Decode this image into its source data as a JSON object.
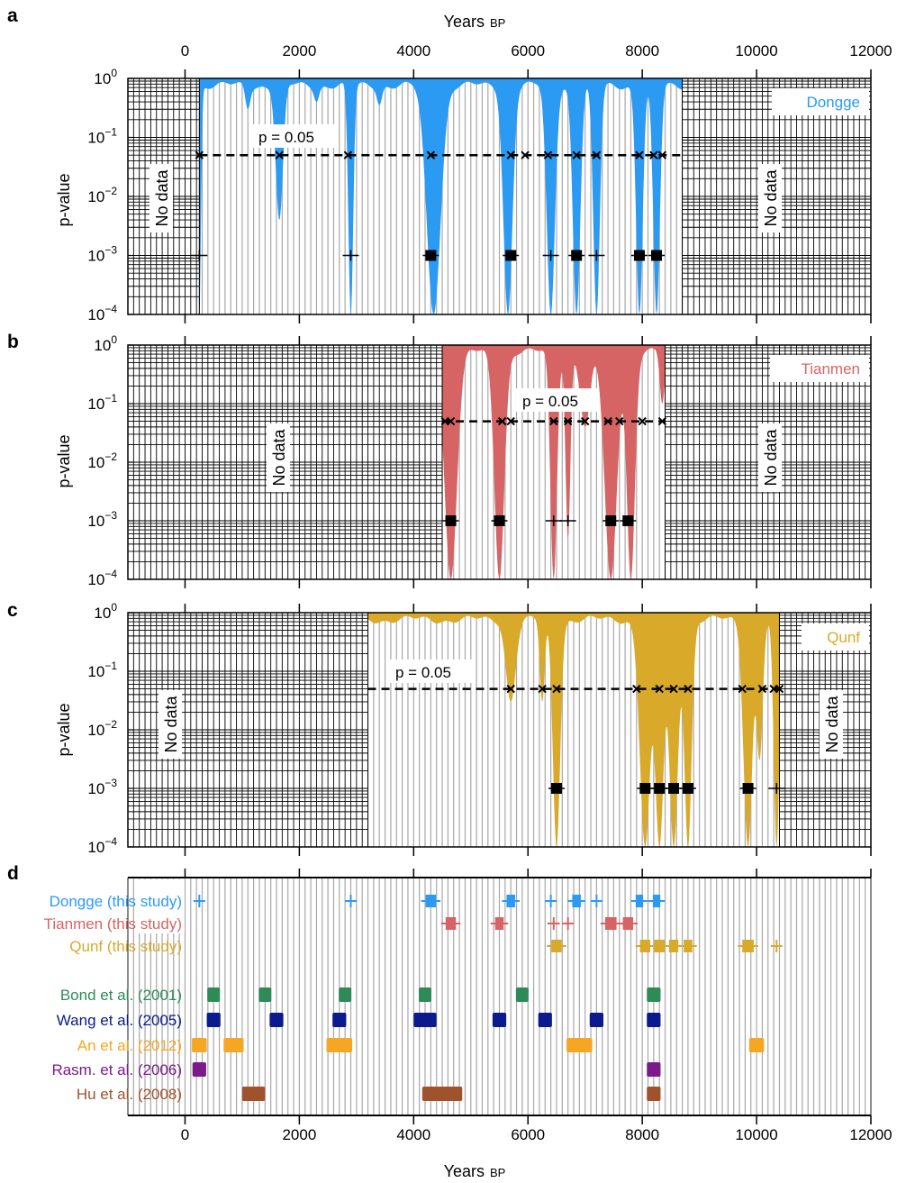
{
  "x_axis": {
    "label_main": "Years",
    "label_small": "BP",
    "ticks": [
      "0",
      "2000",
      "4000",
      "6000",
      "8000",
      "10000",
      "12000"
    ],
    "range": [
      -1000,
      12000
    ]
  },
  "no_data_label": "No data",
  "chart_data": [
    {
      "type": "area",
      "panel": "a",
      "title": "Dongge",
      "color": "#2b9af3",
      "ylabel": "p-value",
      "yscale": "log",
      "ylim": [
        0.0001,
        1
      ],
      "ytick_labels": [
        "10^0",
        "10^-1",
        "10^-2",
        "10^-3",
        "10^-4"
      ],
      "threshold_label": "p = 0.05",
      "threshold": 0.05,
      "data_range": [
        250,
        8700
      ],
      "dips": [
        {
          "x": 250,
          "min": 0.0001,
          "w": 40
        },
        {
          "x": 1100,
          "min": 0.3,
          "w": 60
        },
        {
          "x": 1650,
          "min": 0.004,
          "w": 90
        },
        {
          "x": 2300,
          "min": 0.4,
          "w": 60
        },
        {
          "x": 2900,
          "min": 0.0001,
          "w": 60
        },
        {
          "x": 3400,
          "min": 0.35,
          "w": 60
        },
        {
          "x": 4350,
          "min": 0.0001,
          "w": 170
        },
        {
          "x": 5650,
          "min": 0.0001,
          "w": 110
        },
        {
          "x": 6400,
          "min": 0.0001,
          "w": 100
        },
        {
          "x": 6850,
          "min": 0.0001,
          "w": 90
        },
        {
          "x": 7200,
          "min": 0.0001,
          "w": 80
        },
        {
          "x": 7950,
          "min": 0.0001,
          "w": 80
        },
        {
          "x": 8250,
          "min": 0.0001,
          "w": 80
        }
      ],
      "crossings_p005": [
        250,
        1650,
        2850,
        4300,
        5700,
        5950,
        6350,
        6850,
        7200,
        7950,
        8200,
        8350
      ],
      "events_p001": [
        {
          "x": 250,
          "bar": false
        },
        {
          "x": 2900,
          "bar": false
        },
        {
          "x": 4300,
          "bar": true
        },
        {
          "x": 5700,
          "bar": true
        },
        {
          "x": 6400,
          "bar": false
        },
        {
          "x": 6850,
          "bar": true
        },
        {
          "x": 7200,
          "bar": false
        },
        {
          "x": 7950,
          "bar": true
        },
        {
          "x": 8250,
          "bar": true
        }
      ]
    },
    {
      "type": "area",
      "panel": "b",
      "title": "Tianmen",
      "color": "#d66464",
      "ylabel": "p-value",
      "yscale": "log",
      "ylim": [
        0.0001,
        1
      ],
      "ytick_labels": [
        "10^0",
        "10^-1",
        "10^-2",
        "10^-3",
        "10^-4"
      ],
      "threshold_label": "p = 0.05",
      "threshold": 0.05,
      "data_range": [
        4500,
        8400
      ],
      "dips": [
        {
          "x": 4650,
          "min": 0.0001,
          "w": 150
        },
        {
          "x": 5500,
          "min": 0.0001,
          "w": 120
        },
        {
          "x": 6450,
          "min": 0.0001,
          "w": 80
        },
        {
          "x": 6700,
          "min": 0.0005,
          "w": 60
        },
        {
          "x": 7000,
          "min": 0.04,
          "w": 120
        },
        {
          "x": 7450,
          "min": 0.0001,
          "w": 150
        },
        {
          "x": 7800,
          "min": 0.0001,
          "w": 100
        },
        {
          "x": 8350,
          "min": 0.1,
          "w": 60
        }
      ],
      "crossings_p005": [
        4550,
        4650,
        5550,
        5700,
        6450,
        6700,
        7000,
        7400,
        7600,
        8000,
        8350
      ],
      "events_p001": [
        {
          "x": 4650,
          "bar": true
        },
        {
          "x": 5500,
          "bar": true
        },
        {
          "x": 6450,
          "bar": false
        },
        {
          "x": 6700,
          "bar": false
        },
        {
          "x": 7450,
          "bar": true
        },
        {
          "x": 7750,
          "bar": true
        }
      ]
    },
    {
      "type": "area",
      "panel": "c",
      "title": "Qunf",
      "color": "#d9a92a",
      "ylabel": "p-value",
      "yscale": "log",
      "ylim": [
        0.0001,
        1
      ],
      "ytick_labels": [
        "10^0",
        "10^-1",
        "10^-2",
        "10^-3",
        "10^-4"
      ],
      "threshold_label": "p = 0.05",
      "threshold": 0.05,
      "data_range": [
        3200,
        10400
      ],
      "dips": [
        {
          "x": 5700,
          "min": 0.03,
          "w": 120
        },
        {
          "x": 6250,
          "min": 0.03,
          "w": 60
        },
        {
          "x": 6500,
          "min": 0.0001,
          "w": 90
        },
        {
          "x": 8050,
          "min": 0.0001,
          "w": 130
        },
        {
          "x": 8300,
          "min": 0.0001,
          "w": 110
        },
        {
          "x": 8550,
          "min": 0.0001,
          "w": 110
        },
        {
          "x": 8800,
          "min": 0.0001,
          "w": 90
        },
        {
          "x": 9850,
          "min": 0.0001,
          "w": 110
        },
        {
          "x": 10050,
          "min": 0.003,
          "w": 80
        },
        {
          "x": 10350,
          "min": 0.0001,
          "w": 70
        }
      ],
      "crossings_p005": [
        5700,
        6250,
        6500,
        7900,
        8300,
        8550,
        8800,
        9750,
        10100,
        10300,
        10400
      ],
      "events_p001": [
        {
          "x": 6500,
          "bar": true
        },
        {
          "x": 8050,
          "bar": true
        },
        {
          "x": 8300,
          "bar": true
        },
        {
          "x": 8550,
          "bar": true
        },
        {
          "x": 8800,
          "bar": true
        },
        {
          "x": 9850,
          "bar": true
        },
        {
          "x": 10350,
          "bar": false
        }
      ]
    },
    {
      "type": "timeline",
      "panel": "d",
      "rows": [
        {
          "label": "Dongge (this study)",
          "color": "#2b9af3",
          "events": [
            {
              "x": 250,
              "w": 40
            },
            {
              "x": 2900,
              "w": 40
            },
            {
              "x": 4300,
              "w": 180
            },
            {
              "x": 5700,
              "w": 150
            },
            {
              "x": 6400,
              "w": 40
            },
            {
              "x": 6850,
              "w": 150
            },
            {
              "x": 7200,
              "w": 40
            },
            {
              "x": 7950,
              "w": 130
            },
            {
              "x": 8250,
              "w": 130
            }
          ]
        },
        {
          "label": "Tianmen (this study)",
          "color": "#d66464",
          "events": [
            {
              "x": 4650,
              "w": 180
            },
            {
              "x": 5500,
              "w": 150
            },
            {
              "x": 6450,
              "w": 60
            },
            {
              "x": 6700,
              "w": 40
            },
            {
              "x": 7450,
              "w": 200
            },
            {
              "x": 7750,
              "w": 180
            }
          ]
        },
        {
          "label": "Qunf (this study)",
          "color": "#d9a92a",
          "events": [
            {
              "x": 6500,
              "w": 180
            },
            {
              "x": 8050,
              "w": 180
            },
            {
              "x": 8300,
              "w": 180
            },
            {
              "x": 8550,
              "w": 160
            },
            {
              "x": 8800,
              "w": 150
            },
            {
              "x": 9850,
              "w": 200
            },
            {
              "x": 10350,
              "w": 40
            }
          ]
        },
        {
          "label": "Bond et al. (2001)",
          "color": "#2e8b57",
          "events": [
            {
              "x": 500,
              "w": 220
            },
            {
              "x": 1400,
              "w": 220
            },
            {
              "x": 2800,
              "w": 220
            },
            {
              "x": 4200,
              "w": 220
            },
            {
              "x": 5900,
              "w": 220
            },
            {
              "x": 8200,
              "w": 240
            }
          ]
        },
        {
          "label": "Wang et al. (2005)",
          "color": "#0b1a8c",
          "events": [
            {
              "x": 500,
              "w": 240
            },
            {
              "x": 1600,
              "w": 240
            },
            {
              "x": 2700,
              "w": 240
            },
            {
              "x": 4200,
              "w": 400
            },
            {
              "x": 5500,
              "w": 240
            },
            {
              "x": 6300,
              "w": 240
            },
            {
              "x": 7200,
              "w": 240
            },
            {
              "x": 8200,
              "w": 240
            }
          ]
        },
        {
          "label": "An et al. (2012)",
          "color": "#f5a623",
          "events": [
            {
              "x": 250,
              "w": 260
            },
            {
              "x": 850,
              "w": 350
            },
            {
              "x": 2700,
              "w": 450
            },
            {
              "x": 6900,
              "w": 450
            },
            {
              "x": 10000,
              "w": 260
            }
          ]
        },
        {
          "label": "Rasm. et al. (2006)",
          "color": "#7b1a8a",
          "events": [
            {
              "x": 250,
              "w": 240
            },
            {
              "x": 8200,
              "w": 240
            }
          ]
        },
        {
          "label": "Hu et al. (2008)",
          "color": "#a0522d",
          "events": [
            {
              "x": 1200,
              "w": 400
            },
            {
              "x": 4500,
              "w": 700
            },
            {
              "x": 8200,
              "w": 240
            }
          ]
        }
      ]
    }
  ]
}
